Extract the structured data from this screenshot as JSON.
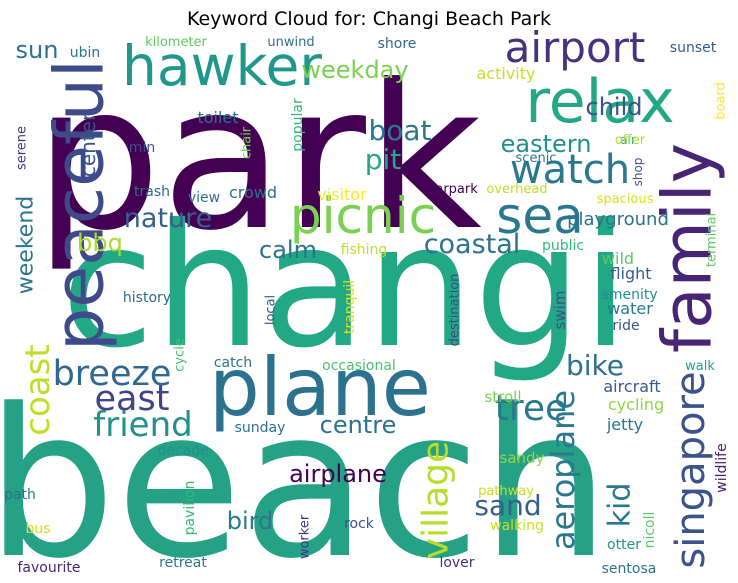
{
  "title": "Keyword Cloud for: Changi Beach Park",
  "words": [
    {
      "text": "beach",
      "color": "#25a185"
    },
    {
      "text": "park",
      "color": "#440154"
    },
    {
      "text": "changi",
      "color": "#22a884"
    },
    {
      "text": "plane",
      "color": "#2c728e"
    },
    {
      "text": "picnic",
      "color": "#7ad151"
    },
    {
      "text": "sea",
      "color": "#2a788e"
    },
    {
      "text": "peaceful",
      "color": "#3e4a89"
    },
    {
      "text": "family",
      "color": "#482475"
    },
    {
      "text": "relax",
      "color": "#22a884"
    },
    {
      "text": "hawker",
      "color": "#1f988b"
    },
    {
      "text": "airport",
      "color": "#46327e"
    },
    {
      "text": "watch",
      "color": "#2a788e"
    },
    {
      "text": "singapore",
      "color": "#3b528b"
    },
    {
      "text": "village",
      "color": "#b5de2b"
    },
    {
      "text": "aeroplane",
      "color": "#2a788e"
    },
    {
      "text": "tree",
      "color": "#2a788e"
    },
    {
      "text": "breeze",
      "color": "#31688e"
    },
    {
      "text": "east",
      "color": "#414487"
    },
    {
      "text": "friend",
      "color": "#21918c"
    },
    {
      "text": "coast",
      "color": "#bddf26"
    },
    {
      "text": "nature",
      "color": "#355f8d"
    },
    {
      "text": "coastal",
      "color": "#2c728e"
    },
    {
      "text": "boat",
      "color": "#2a788e"
    },
    {
      "text": "pit",
      "color": "#22a884"
    },
    {
      "text": "bike",
      "color": "#2c728e"
    },
    {
      "text": "sand",
      "color": "#35608d"
    },
    {
      "text": "kid",
      "color": "#2a788e"
    },
    {
      "text": "weekday",
      "color": "#7ad151"
    },
    {
      "text": "eastern",
      "color": "#21918c"
    },
    {
      "text": "child",
      "color": "#3b528b"
    },
    {
      "text": "centre",
      "color": "#2c728e"
    },
    {
      "text": "calm",
      "color": "#2c728e"
    },
    {
      "text": "bird",
      "color": "#2a788e"
    },
    {
      "text": "airplane",
      "color": "#440154"
    },
    {
      "text": "bbq",
      "color": "#addc30"
    },
    {
      "text": "sun",
      "color": "#2c728e"
    },
    {
      "text": "weekend",
      "color": "#2a788e"
    },
    {
      "text": "center",
      "color": "#3b528b"
    },
    {
      "text": "playground",
      "color": "#2c728e"
    },
    {
      "text": "fishing",
      "color": "#bddf26"
    },
    {
      "text": "public",
      "color": "#35b779"
    },
    {
      "text": "wild",
      "color": "#5ec962"
    },
    {
      "text": "flight",
      "color": "#35608d"
    },
    {
      "text": "amenity",
      "color": "#21918c"
    },
    {
      "text": "water",
      "color": "#2a788e"
    },
    {
      "text": "ride",
      "color": "#3b528b"
    },
    {
      "text": "swim",
      "color": "#3b528b"
    },
    {
      "text": "aircraft",
      "color": "#38598c"
    },
    {
      "text": "cycling",
      "color": "#8fd744"
    },
    {
      "text": "jetty",
      "color": "#2c728e"
    },
    {
      "text": "sandy",
      "color": "#8fd744"
    },
    {
      "text": "pathway",
      "color": "#c8e020"
    },
    {
      "text": "walking",
      "color": "#c8e020"
    },
    {
      "text": "stroll",
      "color": "#7ad151"
    },
    {
      "text": "sunday",
      "color": "#2c728e"
    },
    {
      "text": "rock",
      "color": "#3b528b"
    },
    {
      "text": "worker",
      "color": "#46327e"
    },
    {
      "text": "nicoll",
      "color": "#5ec962"
    },
    {
      "text": "otter",
      "color": "#21918c"
    },
    {
      "text": "sentosa",
      "color": "#2c728e"
    },
    {
      "text": "lover",
      "color": "#46327e"
    },
    {
      "text": "retreat",
      "color": "#2a788e"
    },
    {
      "text": "favourite",
      "color": "#482878"
    },
    {
      "text": "bus",
      "color": "#d2e21b"
    },
    {
      "text": "path",
      "color": "#2c728e"
    },
    {
      "text": "decade",
      "color": "#21918c"
    },
    {
      "text": "pavilion",
      "color": "#35b779"
    },
    {
      "text": "cycle",
      "color": "#4ac16d"
    },
    {
      "text": "history",
      "color": "#31688e"
    },
    {
      "text": "local",
      "color": "#38598c"
    },
    {
      "text": "tranquil",
      "color": "#d8e219"
    },
    {
      "text": "destination",
      "color": "#3e4989"
    },
    {
      "text": "occasional",
      "color": "#4ac16d"
    },
    {
      "text": "catch",
      "color": "#2c728e"
    },
    {
      "text": "walk",
      "color": "#20a386"
    },
    {
      "text": "wildlife",
      "color": "#481a6c"
    },
    {
      "text": "terminal",
      "color": "#5ec962"
    },
    {
      "text": "overhead",
      "color": "#bddf26"
    },
    {
      "text": "spacious",
      "color": "#d8e219"
    },
    {
      "text": "scenic",
      "color": "#2a788e"
    },
    {
      "text": "air",
      "color": "#22a884"
    },
    {
      "text": "shop",
      "color": "#3b528b"
    },
    {
      "text": "offer",
      "color": "#addc30"
    },
    {
      "text": "carpark",
      "color": "#440154"
    },
    {
      "text": "visitor",
      "color": "#fde725"
    },
    {
      "text": "crowd",
      "color": "#2c728e"
    },
    {
      "text": "view",
      "color": "#2c728e"
    },
    {
      "text": "trash",
      "color": "#31688e"
    },
    {
      "text": "min",
      "color": "#3b528b"
    },
    {
      "text": "chair",
      "color": "#7ad151"
    },
    {
      "text": "popular",
      "color": "#35b779"
    },
    {
      "text": "toilet",
      "color": "#2c728e"
    },
    {
      "text": "serene",
      "color": "#46327e"
    },
    {
      "text": "activity",
      "color": "#c8e020"
    },
    {
      "text": "kilometer",
      "color": "#5ec962"
    },
    {
      "text": "unwind",
      "color": "#2c728e"
    },
    {
      "text": "shore",
      "color": "#31688e"
    },
    {
      "text": "ubin",
      "color": "#2c728e"
    },
    {
      "text": "sunset",
      "color": "#38598c"
    },
    {
      "text": "board",
      "color": "#fde725"
    }
  ]
}
